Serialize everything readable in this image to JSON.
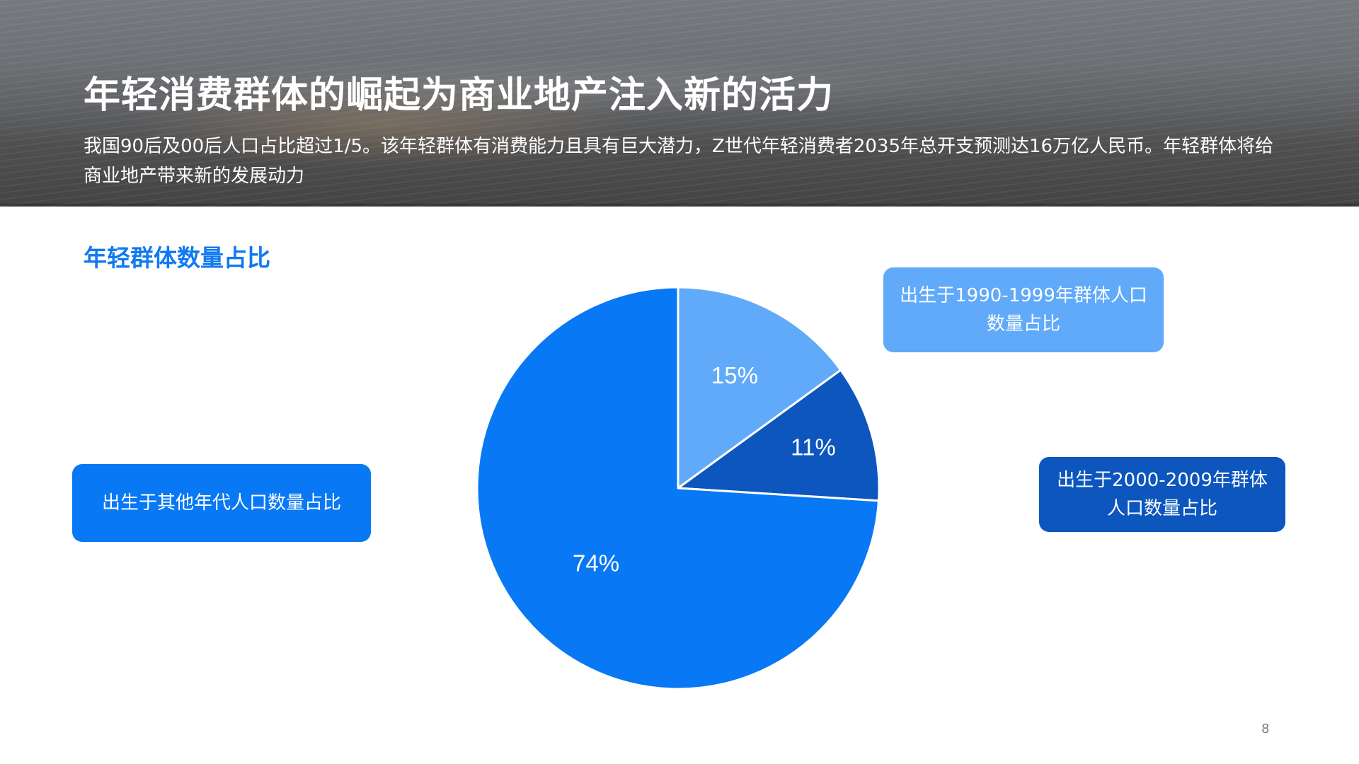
{
  "header": {
    "title": "年轻消费群体的崛起为商业地产注入新的活力",
    "subtitle": "我国90后及00后人口占比超过1/5。该年轻群体有消费能力且具有巨大潜力，Z世代年轻消费者2035年总开支预测达16万亿人民币。年轻群体将给商业地产带来新的发展动力"
  },
  "section": {
    "title": "年轻群体数量占比"
  },
  "callouts": {
    "born_1990": "出生于1990-1999年群体人口数量占比",
    "born_2000": "出生于2000-2009年群体人口数量占比",
    "born_other": "出生于其他年代人口数量占比"
  },
  "chart_data": {
    "type": "pie",
    "start_angle": "12 o'clock",
    "direction": "clockwise",
    "slices": [
      {
        "label": "出生于1990-1999年群体人口数量占比",
        "value": 15,
        "display": "15%",
        "color": "#60aaf9"
      },
      {
        "label": "出生于2000-2009年群体人口数量占比",
        "value": 11,
        "display": "11%",
        "color": "#0c56be"
      },
      {
        "label": "出生于其他年代人口数量占比",
        "value": 74,
        "display": "74%",
        "color": "#0878f4"
      }
    ]
  },
  "footer": {
    "page_number": "8"
  }
}
